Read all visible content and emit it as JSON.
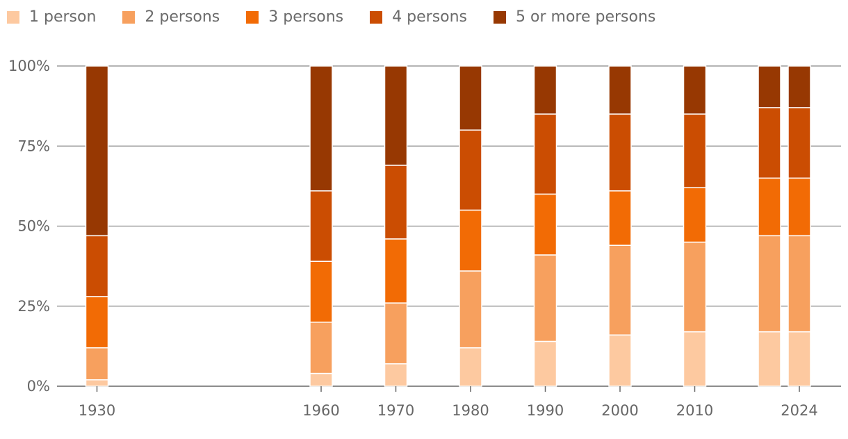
{
  "chart_data": {
    "type": "bar",
    "stacked": true,
    "percent": true,
    "categories": [
      "1930",
      "1960",
      "1970",
      "1980",
      "1990",
      "2000",
      "2010",
      "",
      "2024"
    ],
    "x": [
      1930,
      1960,
      1970,
      1980,
      1990,
      2000,
      2010,
      2020,
      2024
    ],
    "series": [
      {
        "name": "1 person",
        "color": "#fdc9a0",
        "values": [
          2,
          4,
          7,
          12,
          14,
          16,
          17,
          17,
          17
        ]
      },
      {
        "name": "2 persons",
        "color": "#f7a05e",
        "values": [
          10,
          16,
          19,
          24,
          27,
          28,
          28,
          30,
          30
        ]
      },
      {
        "name": "3 persons",
        "color": "#f26b05",
        "values": [
          16,
          19,
          20,
          19,
          19,
          17,
          17,
          18,
          18
        ]
      },
      {
        "name": "4 persons",
        "color": "#cb4d02",
        "values": [
          19,
          22,
          23,
          25,
          25,
          24,
          23,
          22,
          22
        ]
      },
      {
        "name": "5 or more persons",
        "color": "#973802",
        "values": [
          53,
          39,
          31,
          20,
          15,
          15,
          15,
          13,
          13
        ]
      }
    ],
    "yticks": [
      "0%",
      "25%",
      "50%",
      "75%",
      "100%"
    ],
    "ylim": [
      0,
      100
    ],
    "grid": true,
    "legend_position": "top-left"
  }
}
